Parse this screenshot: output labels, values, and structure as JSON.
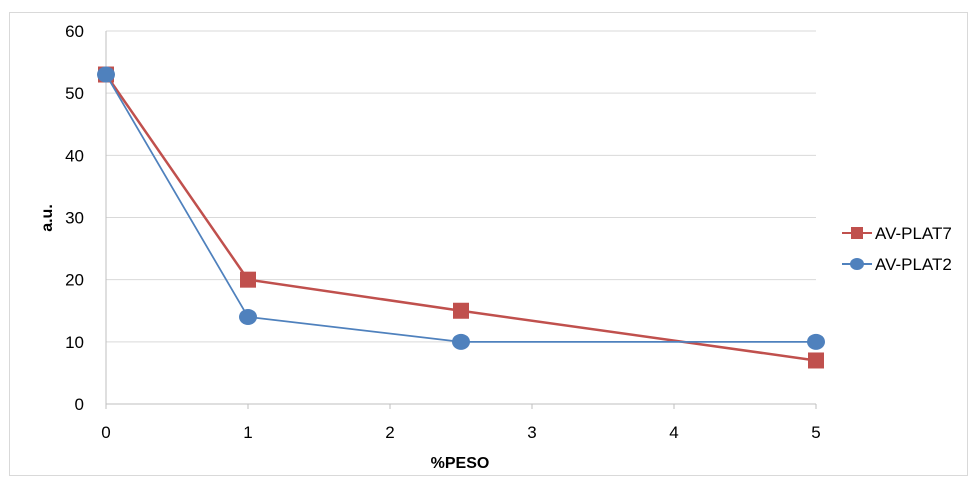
{
  "chart_data": {
    "type": "line",
    "title": "",
    "xlabel": "%PESO",
    "ylabel": "a.u.",
    "xlim": [
      0,
      5
    ],
    "ylim": [
      0,
      60
    ],
    "xticks": [
      "0",
      "1",
      "2",
      "3",
      "4",
      "5"
    ],
    "yticks": [
      "0",
      "10",
      "20",
      "30",
      "40",
      "50",
      "60"
    ],
    "grid": "horizontal",
    "legend": "right",
    "series": [
      {
        "name": "AV-PLAT7",
        "color": "#c0504d",
        "marker": "square",
        "x": [
          0,
          1,
          2.5,
          5
        ],
        "y": [
          53,
          20,
          15,
          7
        ]
      },
      {
        "name": "AV-PLAT2",
        "color": "#4f81bd",
        "marker": "circle",
        "x": [
          0,
          1,
          2.5,
          5
        ],
        "y": [
          53,
          14,
          10,
          10
        ]
      }
    ]
  }
}
